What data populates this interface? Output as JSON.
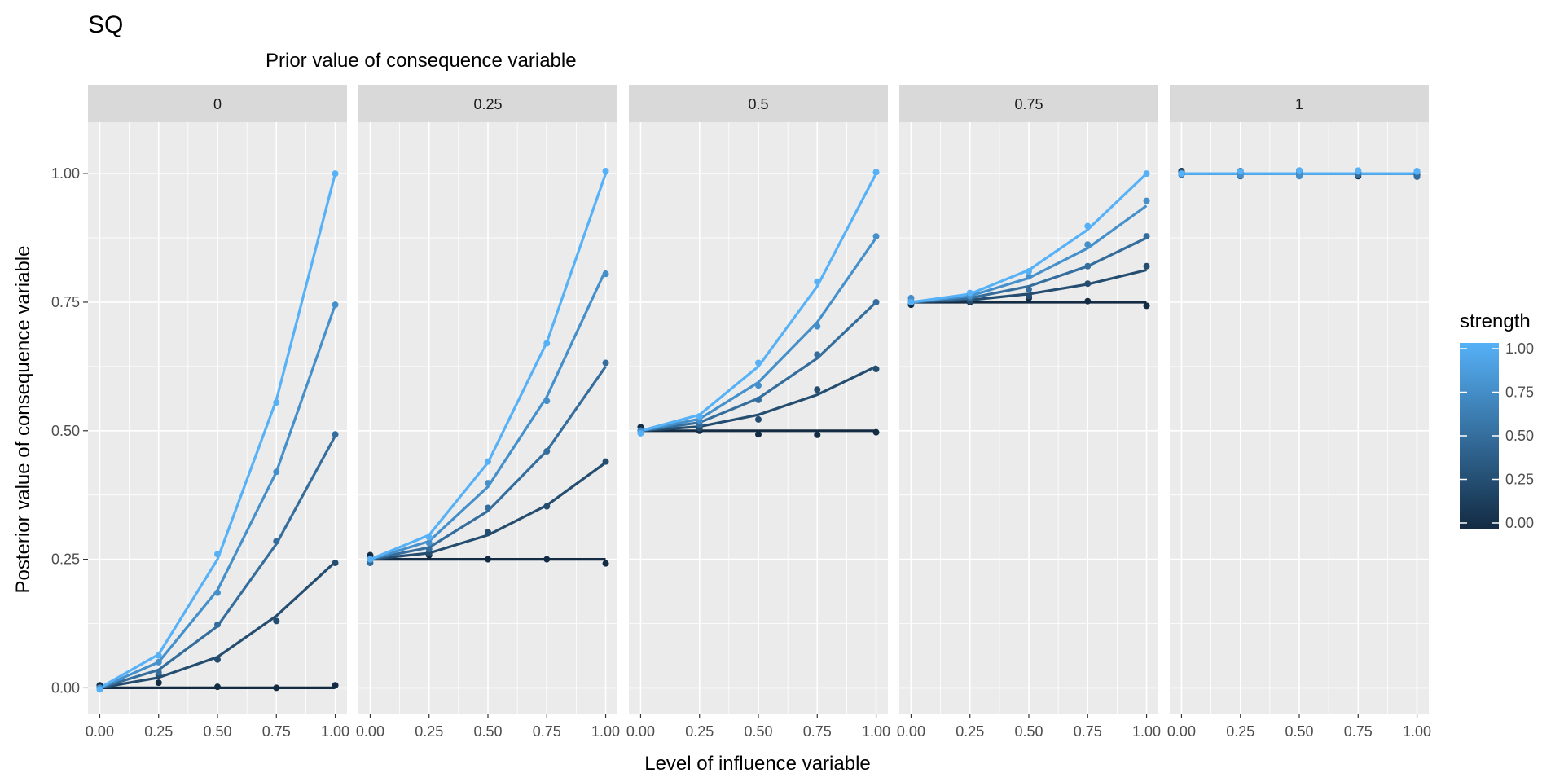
{
  "chart_data": {
    "type": "line",
    "title": "SQ",
    "subtitle": "Prior value of consequence variable",
    "xlabel": "Level of influence variable",
    "ylabel": "Posterior value of consequence variable",
    "x": [
      0,
      0.25,
      0.5,
      0.75,
      1
    ],
    "x_ticks": [
      "0.00",
      "0.25",
      "0.50",
      "0.75",
      "1.00"
    ],
    "y_ticks": [
      "0.00",
      "0.25",
      "0.50",
      "0.75",
      "1.00"
    ],
    "xlim": [
      -0.05,
      1.05
    ],
    "ylim": [
      -0.05,
      1.1
    ],
    "grid": true,
    "legend": {
      "title": "strength",
      "position": "right",
      "ticks": [
        "0.00",
        "0.25",
        "0.50",
        "0.75",
        "1.00"
      ],
      "color_low": "#132B43",
      "color_high": "#56B1F7"
    },
    "strengths": [
      0,
      0.25,
      0.5,
      0.75,
      1
    ],
    "panels": [
      {
        "label": "0",
        "lines": [
          {
            "strength": 0,
            "y": [
              0,
              0,
              0,
              0,
              0
            ]
          },
          {
            "strength": 0.25,
            "y": [
              0,
              0.02,
              0.06,
              0.14,
              0.245
            ]
          },
          {
            "strength": 0.5,
            "y": [
              0,
              0.035,
              0.12,
              0.28,
              0.49
            ]
          },
          {
            "strength": 0.75,
            "y": [
              0,
              0.05,
              0.19,
              0.42,
              0.745
            ]
          },
          {
            "strength": 1,
            "y": [
              0,
              0.065,
              0.25,
              0.56,
              1.0
            ]
          }
        ],
        "points": [
          {
            "strength": 0,
            "y": [
              0.005,
              0.01,
              0.002,
              0.0,
              0.005
            ]
          },
          {
            "strength": 0.25,
            "y": [
              0.0,
              0.025,
              0.055,
              0.13,
              0.243
            ]
          },
          {
            "strength": 0.5,
            "y": [
              0.0,
              0.03,
              0.123,
              0.285,
              0.493
            ]
          },
          {
            "strength": 0.75,
            "y": [
              0.0,
              0.05,
              0.185,
              0.42,
              0.745
            ]
          },
          {
            "strength": 1,
            "y": [
              -0.003,
              0.063,
              0.26,
              0.555,
              1.0
            ]
          }
        ]
      },
      {
        "label": "0.25",
        "lines": [
          {
            "strength": 0,
            "y": [
              0.25,
              0.25,
              0.25,
              0.25,
              0.25
            ]
          },
          {
            "strength": 0.25,
            "y": [
              0.25,
              0.262,
              0.297,
              0.355,
              0.438
            ]
          },
          {
            "strength": 0.5,
            "y": [
              0.25,
              0.273,
              0.344,
              0.461,
              0.625
            ]
          },
          {
            "strength": 0.75,
            "y": [
              0.25,
              0.285,
              0.391,
              0.566,
              0.8125
            ]
          },
          {
            "strength": 1,
            "y": [
              0.25,
              0.297,
              0.438,
              0.672,
              1.0
            ]
          }
        ],
        "points": [
          {
            "strength": 0,
            "y": [
              0.258,
              0.258,
              0.25,
              0.25,
              0.242
            ]
          },
          {
            "strength": 0.25,
            "y": [
              0.25,
              0.262,
              0.303,
              0.353,
              0.44
            ]
          },
          {
            "strength": 0.5,
            "y": [
              0.243,
              0.27,
              0.35,
              0.46,
              0.632
            ]
          },
          {
            "strength": 0.75,
            "y": [
              0.25,
              0.282,
              0.398,
              0.558,
              0.805
            ]
          },
          {
            "strength": 1,
            "y": [
              0.25,
              0.293,
              0.44,
              0.67,
              1.005
            ]
          }
        ]
      },
      {
        "label": "0.5",
        "lines": [
          {
            "strength": 0,
            "y": [
              0.5,
              0.5,
              0.5,
              0.5,
              0.5
            ]
          },
          {
            "strength": 0.25,
            "y": [
              0.5,
              0.508,
              0.531,
              0.57,
              0.625
            ]
          },
          {
            "strength": 0.5,
            "y": [
              0.5,
              0.516,
              0.563,
              0.641,
              0.75
            ]
          },
          {
            "strength": 0.75,
            "y": [
              0.5,
              0.523,
              0.594,
              0.711,
              0.875
            ]
          },
          {
            "strength": 1,
            "y": [
              0.5,
              0.531,
              0.625,
              0.781,
              1.0
            ]
          }
        ],
        "points": [
          {
            "strength": 0,
            "y": [
              0.507,
              0.5,
              0.493,
              0.492,
              0.497
            ]
          },
          {
            "strength": 0.25,
            "y": [
              0.5,
              0.505,
              0.522,
              0.58,
              0.62
            ]
          },
          {
            "strength": 0.5,
            "y": [
              0.5,
              0.512,
              0.56,
              0.648,
              0.75
            ]
          },
          {
            "strength": 0.75,
            "y": [
              0.5,
              0.52,
              0.588,
              0.703,
              0.878
            ]
          },
          {
            "strength": 1,
            "y": [
              0.495,
              0.528,
              0.632,
              0.79,
              1.003
            ]
          }
        ]
      },
      {
        "label": "0.75",
        "lines": [
          {
            "strength": 0,
            "y": [
              0.75,
              0.75,
              0.75,
              0.75,
              0.75
            ]
          },
          {
            "strength": 0.25,
            "y": [
              0.75,
              0.754,
              0.766,
              0.785,
              0.8125
            ]
          },
          {
            "strength": 0.5,
            "y": [
              0.75,
              0.758,
              0.781,
              0.82,
              0.875
            ]
          },
          {
            "strength": 0.75,
            "y": [
              0.75,
              0.762,
              0.797,
              0.855,
              0.9375
            ]
          },
          {
            "strength": 1,
            "y": [
              0.75,
              0.766,
              0.8125,
              0.891,
              1.0
            ]
          }
        ],
        "points": [
          {
            "strength": 0,
            "y": [
              0.745,
              0.75,
              0.758,
              0.752,
              0.743
            ]
          },
          {
            "strength": 0.25,
            "y": [
              0.75,
              0.752,
              0.762,
              0.786,
              0.82
            ]
          },
          {
            "strength": 0.5,
            "y": [
              0.752,
              0.758,
              0.775,
              0.82,
              0.878
            ]
          },
          {
            "strength": 0.75,
            "y": [
              0.758,
              0.762,
              0.8,
              0.862,
              0.947
            ]
          },
          {
            "strength": 1,
            "y": [
              0.75,
              0.768,
              0.81,
              0.898,
              1.0
            ]
          }
        ]
      },
      {
        "label": "1",
        "lines": [
          {
            "strength": 0,
            "y": [
              1,
              1,
              1,
              1,
              1
            ]
          },
          {
            "strength": 0.25,
            "y": [
              1,
              1,
              1,
              1,
              1
            ]
          },
          {
            "strength": 0.5,
            "y": [
              1,
              1,
              1,
              1,
              1
            ]
          },
          {
            "strength": 0.75,
            "y": [
              1,
              1,
              1,
              1,
              1
            ]
          },
          {
            "strength": 1,
            "y": [
              1,
              1,
              1,
              1,
              1
            ]
          }
        ],
        "points": [
          {
            "strength": 0,
            "y": [
              1.005,
              1.003,
              1.006,
              0.995,
              0.997
            ]
          },
          {
            "strength": 0.25,
            "y": [
              1.003,
              0.995,
              0.996,
              1.003,
              1.002
            ]
          },
          {
            "strength": 0.5,
            "y": [
              0.998,
              1.005,
              1.004,
              0.998,
              0.994
            ]
          },
          {
            "strength": 0.75,
            "y": [
              1.0,
              0.996,
              0.995,
              1.004,
              1.003
            ]
          },
          {
            "strength": 1,
            "y": [
              1.0,
              1.004,
              1.006,
              1.006,
              1.005
            ]
          }
        ]
      }
    ]
  }
}
